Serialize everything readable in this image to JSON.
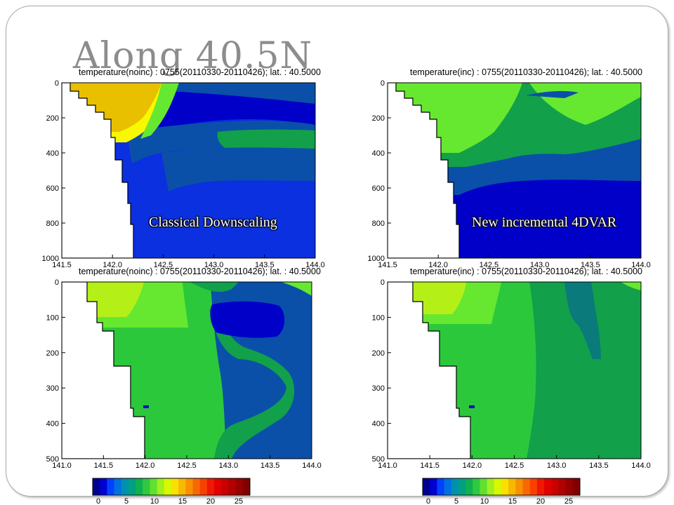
{
  "slide": {
    "title": "Along 40.5N"
  },
  "labels": {
    "classical": "Classical Downscaling",
    "incremental": "New incremental 4DVAR"
  },
  "colors": {
    "navy": "#0000c8",
    "blue": "#0a30e0",
    "teal_blue": "#0a50a8",
    "teal": "#0a7a7a",
    "green_dark": "#12a04a",
    "green": "#2cc83c",
    "green_light": "#66e830",
    "yellow_green": "#b4f018",
    "yellow": "#f8f800",
    "gold": "#e8c000",
    "land": "#ffffff"
  },
  "chart_data": [
    {
      "id": "top-left",
      "type": "heatmap",
      "title": "temperature(noinc) : 0755(20110330-20110426); lat. : 40.5000",
      "xlim": [
        141.5,
        144.0
      ],
      "ylim": [
        1000,
        0
      ],
      "x_ticks": [
        "141.5",
        "142.0",
        "142.5",
        "143.0",
        "143.5",
        "144.0"
      ],
      "y_ticks": [
        "0",
        "200",
        "400",
        "600",
        "800",
        "1000"
      ]
    },
    {
      "id": "top-right",
      "type": "heatmap",
      "title": "temperature(inc) : 0755(20110330-20110426); lat. : 40.5000",
      "xlim": [
        141.5,
        144.0
      ],
      "ylim": [
        1000,
        0
      ],
      "x_ticks": [
        "141.5",
        "142.0",
        "142.5",
        "143.0",
        "143.5",
        "144.0"
      ],
      "y_ticks": [
        "0",
        "200",
        "400",
        "600",
        "800",
        "1000"
      ]
    },
    {
      "id": "bottom-left",
      "type": "heatmap",
      "title": "temperature(noinc) : 0755(20110330-20110426); lat. : 40.5000",
      "xlim": [
        141.0,
        144.0
      ],
      "ylim": [
        500,
        0
      ],
      "x_ticks": [
        "141.0",
        "141.5",
        "142.0",
        "142.5",
        "143.0",
        "143.5",
        "144.0"
      ],
      "y_ticks": [
        "0",
        "100",
        "200",
        "300",
        "400",
        "500"
      ]
    },
    {
      "id": "bottom-right",
      "type": "heatmap",
      "title": "temperature(inc) : 0755(20110330-20110426); lat. : 40.5000",
      "xlim": [
        141.0,
        144.0
      ],
      "ylim": [
        500,
        0
      ],
      "x_ticks": [
        "141.0",
        "141.5",
        "142.0",
        "142.5",
        "143.0",
        "143.5",
        "144.0"
      ],
      "y_ticks": [
        "0",
        "100",
        "200",
        "300",
        "400",
        "500"
      ]
    }
  ],
  "colorbar": {
    "ticks": [
      "0",
      "5",
      "10",
      "15",
      "20",
      "25"
    ],
    "range": [
      -1,
      27
    ],
    "colors": [
      "#000090",
      "#0000d0",
      "#0040ff",
      "#0070e0",
      "#0090b0",
      "#00a080",
      "#10b050",
      "#30c840",
      "#60e030",
      "#a0f020",
      "#d8f800",
      "#f8e000",
      "#f8b800",
      "#f89000",
      "#f86800",
      "#f84000",
      "#f01800",
      "#e00000",
      "#c80000",
      "#b00000",
      "#980000",
      "#800000"
    ]
  }
}
